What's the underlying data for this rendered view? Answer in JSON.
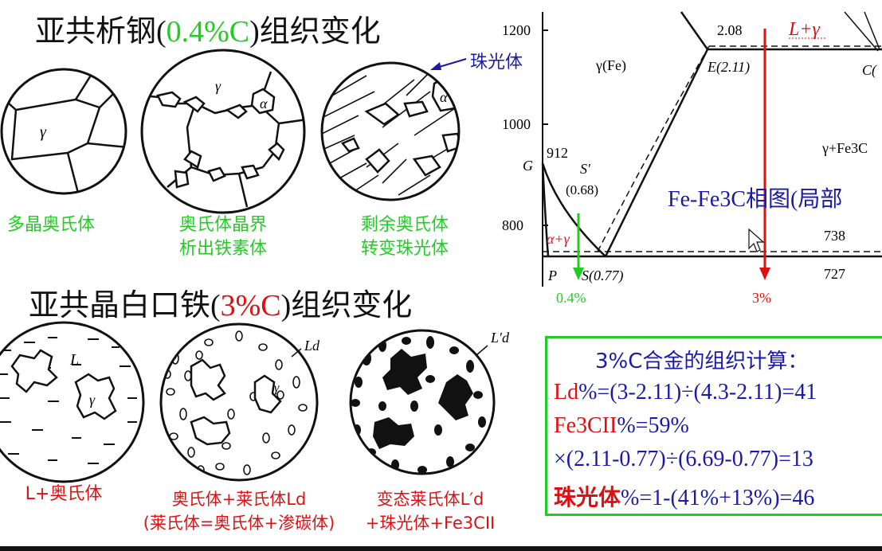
{
  "colors": {
    "green": "#22cc22",
    "red": "#dd1111",
    "blue": "#1a1aa6",
    "black": "#111111"
  },
  "hypo_steel": {
    "title_pre": "亚共析钢(",
    "title_hl": "0.4%C",
    "title_post": ")组织变化",
    "pearlite_callout": "珠光体",
    "greek_gamma": "γ",
    "greek_alpha": "α",
    "captions": [
      {
        "line1": "多晶奥氏体",
        "line2": ""
      },
      {
        "line1": "奥氏体晶界",
        "line2": "析出铁素体"
      },
      {
        "line1": "剩余奥氏体",
        "line2": "转变珠光体"
      }
    ]
  },
  "hypo_iron": {
    "title_pre": "亚共晶白口铁(",
    "title_hl": "3%C",
    "title_post": ")组织变化",
    "label_L": "L",
    "label_gamma": "γ",
    "label_Ld": "Ld",
    "label_Ld_prime": "L′d",
    "captions": [
      {
        "line1": "L+奥氏体",
        "line2": ""
      },
      {
        "line1": "奥氏体+莱氏体Ld",
        "line2": "(莱氏体=奥氏体+渗碳体)"
      },
      {
        "line1": "变态莱氏体L′d",
        "line2": "+珠光体+Fe3CII"
      }
    ]
  },
  "phase_diagram": {
    "title": "Fe-Fe3C相图(局部",
    "y_ticks": [
      "1200",
      "1000",
      "800"
    ],
    "labels": {
      "t912": "912",
      "G": "G",
      "S_prime": "S′",
      "s_prime_val": "(0.68)",
      "gamma_fe": "γ(Fe)",
      "val_208": "2.08",
      "E": "E(2.11)",
      "C": "C(",
      "L_gamma": "L+γ",
      "gamma_fe3c": "γ+Fe3C",
      "alpha_gamma": "α+γ",
      "t738": "738",
      "t727": "727",
      "P": "P",
      "S": "S(0.77)",
      "arrow_04": "0.4%",
      "arrow_3": "3%"
    }
  },
  "calc": {
    "title": "3%C合金的组织计算：",
    "line1_label": "Ld",
    "line1_rest": "%=(3-2.11)÷(4.3-2.11)=41",
    "line2_label": "Fe3CII",
    "line2_rest": "%=59%",
    "line3": "×(2.11-0.77)÷(6.69-0.77)=13",
    "line4_label": "珠光体",
    "line4_rest": "%=1-(41%+13%)=46"
  }
}
